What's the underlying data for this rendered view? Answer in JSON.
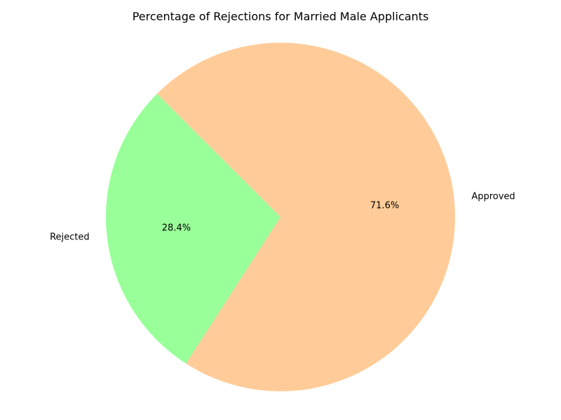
{
  "chart_data": {
    "type": "pie",
    "title": "Percentage of Rejections for Married Male Applicants",
    "slices": [
      {
        "label": "Rejected",
        "value": 28.4,
        "pct_label": "28.4%",
        "color": "#99ff99"
      },
      {
        "label": "Approved",
        "value": 71.6,
        "pct_label": "71.6%",
        "color": "#ffcc99"
      }
    ],
    "legend": "none"
  }
}
